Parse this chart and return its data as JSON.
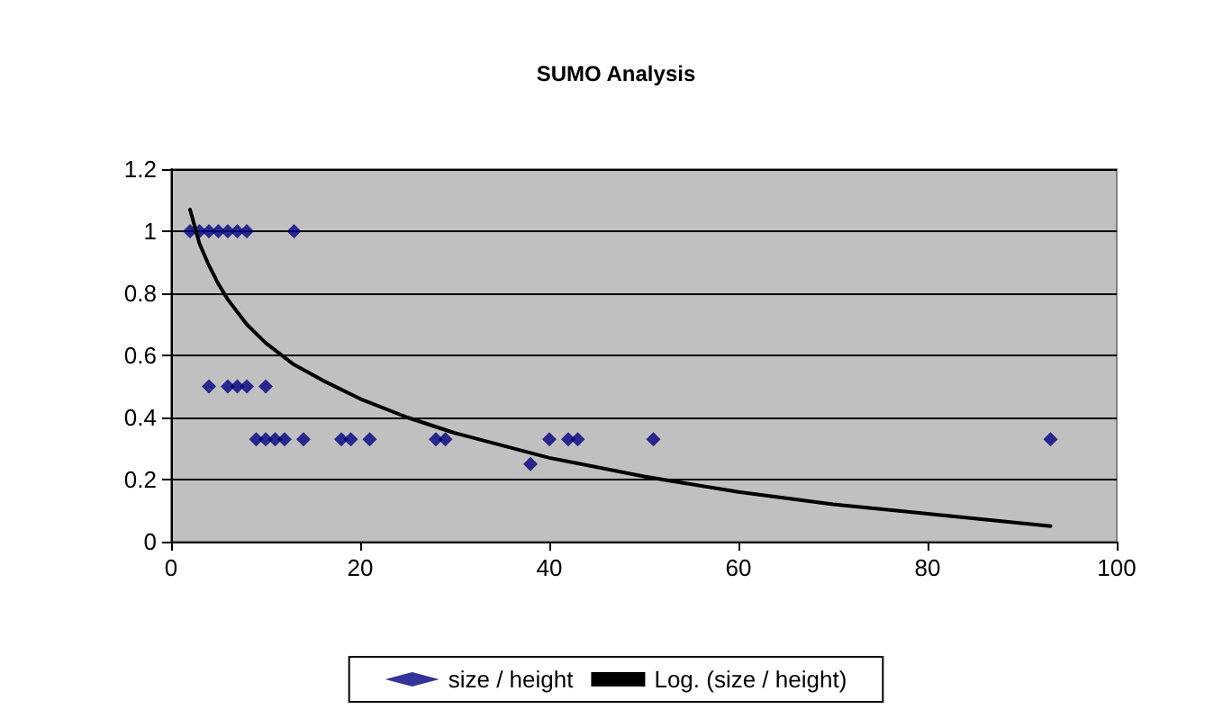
{
  "chart_data": {
    "type": "scatter",
    "title": "SUMO Analysis",
    "xlim": [
      0,
      100
    ],
    "xticks": [
      0,
      20,
      40,
      60,
      80,
      100
    ],
    "ylim": [
      0,
      1.2
    ],
    "yticks": [
      0,
      0.2,
      0.4,
      0.6,
      0.8,
      1,
      1.2
    ],
    "grid": "y",
    "legend": "bottom",
    "series": [
      {
        "name": "size / height",
        "marker": "diamond",
        "color": "#000080",
        "x": [
          2,
          3,
          4,
          5,
          6,
          7,
          8,
          13,
          4,
          6,
          7,
          8,
          10,
          9,
          10,
          11,
          12,
          14,
          18,
          19,
          21,
          28,
          29,
          38,
          40,
          42,
          43,
          51,
          93
        ],
        "values": [
          1,
          1,
          1,
          1,
          1,
          1,
          1,
          1,
          0.5,
          0.5,
          0.5,
          0.5,
          0.5,
          0.33,
          0.33,
          0.33,
          0.33,
          0.33,
          0.33,
          0.33,
          0.33,
          0.33,
          0.33,
          0.25,
          0.33,
          0.33,
          0.33,
          0.33,
          0.33
        ]
      },
      {
        "name": "Log. (size / height)",
        "type": "line",
        "color": "#000000",
        "line_style": "solid",
        "marker": "none",
        "x": [
          2,
          3,
          4,
          5,
          6,
          8,
          10,
          13,
          16,
          20,
          25,
          30,
          40,
          50,
          60,
          70,
          80,
          93
        ],
        "values": [
          1.07,
          0.96,
          0.89,
          0.83,
          0.78,
          0.7,
          0.64,
          0.57,
          0.52,
          0.46,
          0.4,
          0.35,
          0.27,
          0.21,
          0.16,
          0.12,
          0.09,
          0.05
        ]
      }
    ]
  }
}
